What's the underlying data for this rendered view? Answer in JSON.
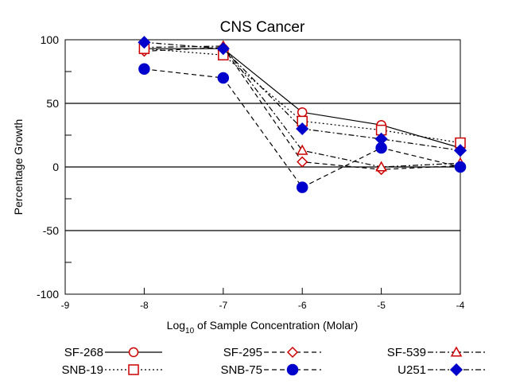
{
  "chart_data": {
    "type": "line",
    "title": "CNS Cancer",
    "ylabel": "Percentage Growth",
    "xlabel_main": "Log",
    "xlabel_sub": "10",
    "xlabel_rest": " of Sample Concentration (Molar)",
    "xlim": [
      -9,
      -4
    ],
    "ylim": [
      -100,
      100
    ],
    "x_ticks": [
      -9,
      -8,
      -7,
      -6,
      -5,
      -4
    ],
    "y_ticks": [
      -100,
      -50,
      0,
      50,
      100
    ],
    "reference_lines": [
      -50,
      0,
      50
    ],
    "grid": false,
    "legend_placement": "bottom",
    "series": [
      {
        "name": "SF-268",
        "color": "#cc0000",
        "marker": "circle-open",
        "dash": "solid",
        "x": [
          -8,
          -7,
          -6,
          -5,
          -4
        ],
        "y": [
          93,
          93,
          43,
          33,
          15
        ]
      },
      {
        "name": "SF-295",
        "color": "#cc0000",
        "marker": "diamond-open",
        "dash": "dashed",
        "x": [
          -8,
          -7,
          -6,
          -5,
          -4
        ],
        "y": [
          91,
          94,
          4,
          -2,
          1
        ]
      },
      {
        "name": "SF-539",
        "color": "#cc0000",
        "marker": "triangle-open",
        "dash": "dashdot",
        "x": [
          -8,
          -7,
          -6,
          -5,
          -4
        ],
        "y": [
          94,
          95,
          13,
          0,
          3
        ]
      },
      {
        "name": "SNB-19",
        "color": "#cc0000",
        "marker": "square-open",
        "dash": "dotted",
        "x": [
          -8,
          -7,
          -6,
          -5,
          -4
        ],
        "y": [
          93,
          88,
          36,
          29,
          19
        ]
      },
      {
        "name": "SNB-75",
        "color": "#0000cc",
        "marker": "circle-filled",
        "dash": "dashed",
        "x": [
          -8,
          -7,
          -6,
          -5,
          -4
        ],
        "y": [
          77,
          70,
          -16,
          15,
          0
        ]
      },
      {
        "name": "U251",
        "color": "#0000cc",
        "marker": "diamond-filled",
        "dash": "dashdot",
        "x": [
          -8,
          -7,
          -6,
          -5,
          -4
        ],
        "y": [
          98,
          93,
          30,
          22,
          13
        ]
      }
    ]
  }
}
